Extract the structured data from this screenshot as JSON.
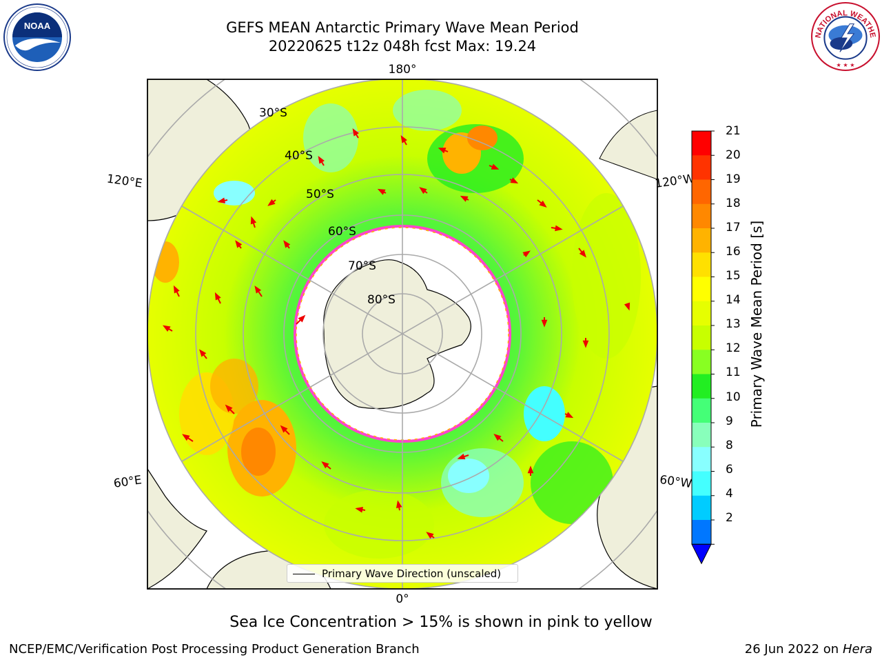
{
  "title_line1": "GEFS MEAN Antarctic Primary Wave Mean Period",
  "title_line2": "20220625 t12z 048h fcst   Max: 19.24",
  "latitude_labels": [
    "30°S",
    "40°S",
    "50°S",
    "60°S",
    "70°S",
    "80°S"
  ],
  "longitude_labels": {
    "top": "180°",
    "bottom": "0°",
    "upper_left": "120°E",
    "lower_left": "60°E",
    "upper_right": "120°W",
    "lower_right": "60°W"
  },
  "colorbar": {
    "title": "Primary Wave Mean Period [s]",
    "ticks": [
      "21",
      "20",
      "19",
      "18",
      "17",
      "16",
      "15",
      "14",
      "13",
      "12",
      "11",
      "10",
      "9",
      "8",
      "6",
      "4",
      "2"
    ],
    "colors": [
      "#ff0000",
      "#ff3300",
      "#ff6600",
      "#ff8800",
      "#ffb300",
      "#ffe000",
      "#ffff00",
      "#e6ff00",
      "#c8ff00",
      "#88ff22",
      "#22ee22",
      "#44ff77",
      "#88ffbb",
      "#88ffff",
      "#44ffff",
      "#00ccff",
      "#0077ff",
      "#0000ff"
    ]
  },
  "legend": {
    "label": "Primary Wave Direction (unscaled)"
  },
  "ice_note": "Sea Ice Concentration > 15% is shown in pink to yellow",
  "footer": {
    "left": "NCEP/EMC/Verification Post Processing Product Generation Branch",
    "right_date": "26 Jun 2022 on",
    "right_system": "Hera"
  },
  "logos": {
    "noaa": "NOAA",
    "nws": "NATIONAL WEATHER SERVICE"
  }
}
